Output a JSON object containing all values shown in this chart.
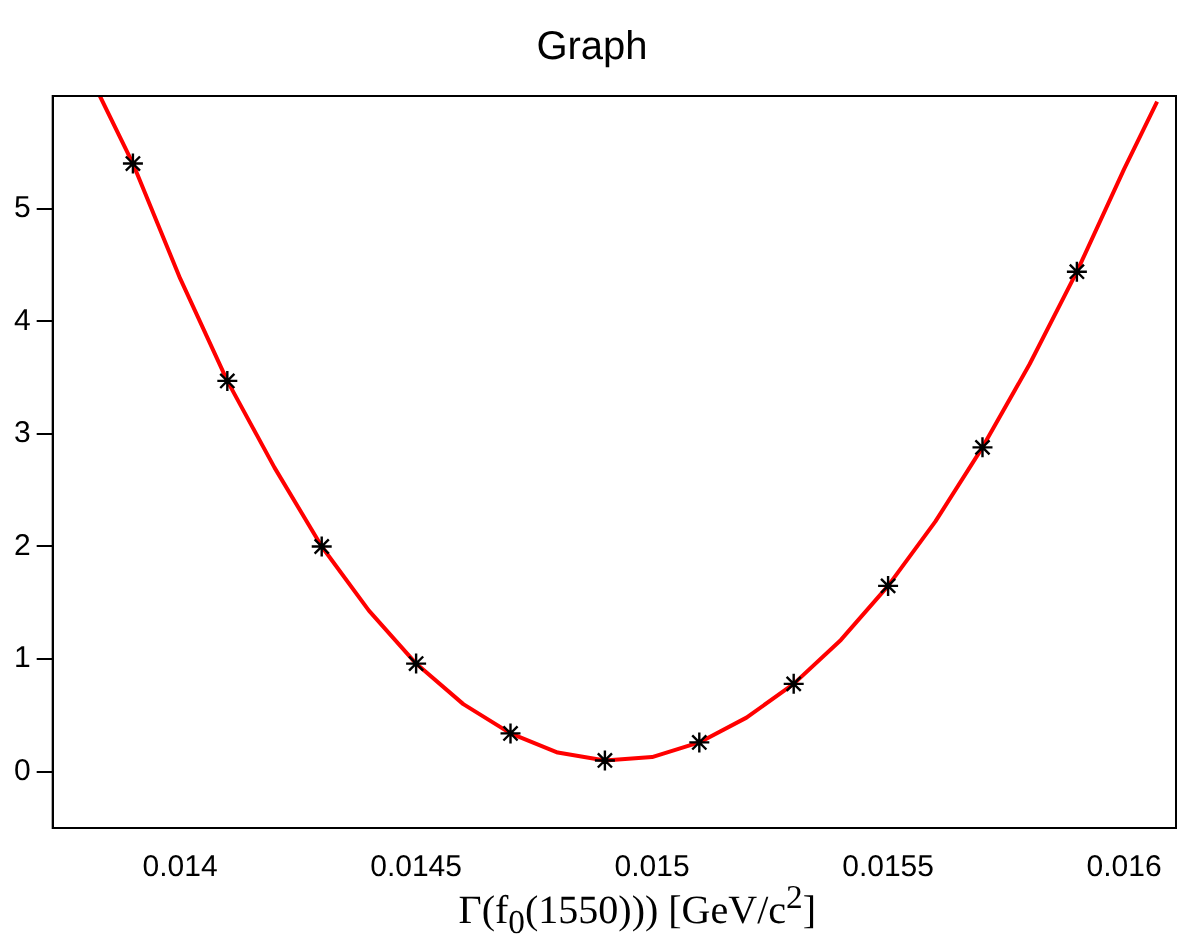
{
  "chart_data": {
    "type": "scatter",
    "title": "Graph",
    "xlabel": "Γ(f$_{0}$(1550))) [GeV/c$^{2}$]",
    "xlim": [
      0.01373,
      0.01611
    ],
    "ylim": [
      -0.5,
      6.0
    ],
    "xticks": [
      0.014,
      0.0145,
      0.015,
      0.0155,
      0.016
    ],
    "yticks": [
      0,
      1,
      2,
      3,
      4,
      5
    ],
    "grid": false,
    "legend": false,
    "series": [
      {
        "color": "#000000",
        "marker": "cross",
        "x": [
          0.0139,
          0.0141,
          0.0143,
          0.0145,
          0.0147,
          0.0149,
          0.0151,
          0.0153,
          0.0155,
          0.0157,
          0.0159
        ],
        "values": [
          5.4,
          3.47,
          2.0,
          0.96,
          0.34,
          0.1,
          0.26,
          0.78,
          1.65,
          2.88,
          4.44
        ]
      },
      {
        "type": "line",
        "color": "#ff0000",
        "marker": "none",
        "line_style": "solid",
        "x": [
          0.01383,
          0.0139,
          0.014,
          0.0141,
          0.0142,
          0.0143,
          0.0144,
          0.0145,
          0.0146,
          0.0147,
          0.0148,
          0.0149,
          0.015,
          0.0151,
          0.0152,
          0.0153,
          0.0154,
          0.0155,
          0.0156,
          0.0157,
          0.0158,
          0.0159,
          0.016,
          0.01607
        ],
        "values": [
          6.0,
          5.4,
          4.38,
          3.47,
          2.7,
          2.0,
          1.43,
          0.96,
          0.6,
          0.34,
          0.17,
          0.1,
          0.13,
          0.26,
          0.48,
          0.78,
          1.17,
          1.65,
          2.22,
          2.88,
          3.62,
          4.44,
          5.35,
          5.95
        ]
      }
    ]
  }
}
